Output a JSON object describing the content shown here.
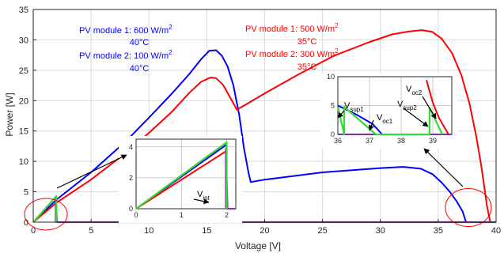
{
  "chart_data": {
    "type": "line",
    "xlabel": "Voltage [V]",
    "ylabel": "Power [W]",
    "xlim": [
      0,
      40
    ],
    "ylim": [
      0,
      35
    ],
    "x_ticks": [
      "0",
      "5",
      "10",
      "15",
      "20",
      "25",
      "30",
      "35",
      "40"
    ],
    "y_ticks": [
      "0",
      "5",
      "10",
      "15",
      "20",
      "25",
      "30",
      "35"
    ],
    "grid": true,
    "colors": {
      "blue": "#0000ff",
      "red": "#ff0000",
      "green": "#33dd33",
      "purple": "#8030a0",
      "ellipse": "#ff0000"
    },
    "series": [
      {
        "color": "blue",
        "points": [
          [
            0,
            0
          ],
          [
            2,
            3.7
          ],
          [
            5,
            8.2
          ],
          [
            8,
            13.3
          ],
          [
            10,
            17.2
          ],
          [
            12,
            21.2
          ],
          [
            13.5,
            24.4
          ],
          [
            14.5,
            26.8
          ],
          [
            15.2,
            28.2
          ],
          [
            15.8,
            28.3
          ],
          [
            16.3,
            27.4
          ],
          [
            16.8,
            25.6
          ],
          [
            17.3,
            22.5
          ],
          [
            17.8,
            17.7
          ],
          [
            18.2,
            12.3
          ],
          [
            18.6,
            8.2
          ],
          [
            18.8,
            6.6
          ],
          [
            20,
            7.0
          ],
          [
            25,
            8.2
          ],
          [
            30,
            8.9
          ],
          [
            32,
            9.1
          ],
          [
            33.5,
            8.8
          ],
          [
            34.5,
            7.9
          ],
          [
            35.3,
            6.5
          ],
          [
            36,
            5.0
          ],
          [
            36.6,
            3.4
          ],
          [
            37.1,
            1.8
          ],
          [
            37.4,
            0
          ]
        ]
      },
      {
        "color": "red",
        "points": [
          [
            0,
            0
          ],
          [
            2,
            3.2
          ],
          [
            5,
            7.0
          ],
          [
            8,
            11.4
          ],
          [
            10,
            14.7
          ],
          [
            12,
            18.2
          ],
          [
            13.5,
            21.3
          ],
          [
            14.5,
            23.1
          ],
          [
            15.3,
            23.8
          ],
          [
            15.8,
            23.7
          ],
          [
            16.4,
            22.6
          ],
          [
            17,
            20.6
          ],
          [
            17.6,
            18.5
          ],
          [
            18.5,
            19.5
          ],
          [
            20,
            21.2
          ],
          [
            23,
            24.4
          ],
          [
            26,
            27.4
          ],
          [
            29,
            29.6
          ],
          [
            31,
            30.9
          ],
          [
            32.5,
            31.4
          ],
          [
            33.6,
            31.6
          ],
          [
            34.5,
            31.3
          ],
          [
            35.3,
            30.2
          ],
          [
            36.2,
            27.8
          ],
          [
            37,
            24.2
          ],
          [
            37.7,
            19.5
          ],
          [
            38.3,
            14.0
          ],
          [
            38.7,
            9.5
          ],
          [
            39,
            5.5
          ],
          [
            39.2,
            2.8
          ],
          [
            39.5,
            0
          ]
        ]
      }
    ],
    "main_overlay": {
      "green": [
        [
          0,
          0
        ],
        [
          2,
          4.3
        ],
        [
          2,
          0
        ]
      ],
      "purple": [
        [
          1.95,
          0
        ],
        [
          1.95,
          3.8
        ],
        [
          2.05,
          0
        ],
        [
          40,
          0
        ]
      ]
    },
    "annotations": [
      {
        "lines": [
          "PV module 1: 600 W/m²",
          "40°C",
          "PV module 2: 100 W/m²",
          "40°C"
        ],
        "color": "blue"
      },
      {
        "lines": [
          "PV module 1: 500 W/m²",
          "35°C",
          "PV module 2: 300 W/m²",
          "35°C"
        ],
        "color": "red"
      }
    ],
    "insets": [
      {
        "xlim": [
          0,
          2.2
        ],
        "ylim": [
          0,
          4.5
        ],
        "x_ticks": [
          "0",
          "1",
          "2"
        ],
        "y_ticks": [
          "0",
          "2",
          "4"
        ],
        "label": "V",
        "label_sub": "int",
        "blue": [
          [
            0,
            0
          ],
          [
            2,
            4.15
          ]
        ],
        "red": [
          [
            0,
            0
          ],
          [
            2,
            3.75
          ]
        ],
        "green": [
          [
            0,
            0
          ],
          [
            2,
            4.3
          ],
          [
            2,
            0
          ]
        ],
        "purple": [
          [
            1.98,
            0
          ],
          [
            1.98,
            3.9
          ],
          [
            2.02,
            0
          ],
          [
            2.2,
            0
          ]
        ]
      },
      {
        "xlim": [
          36,
          39.6
        ],
        "ylim": [
          0,
          10
        ],
        "x_ticks": [
          "36",
          "37",
          "38",
          "39"
        ],
        "y_ticks": [
          "0",
          "5",
          "10"
        ],
        "labels": [
          {
            "main": "V",
            "sub": "sup1"
          },
          {
            "main": "V",
            "sub": "oc1"
          },
          {
            "main": "V",
            "sub": "sup2"
          },
          {
            "main": "V",
            "sub": "oc2"
          }
        ],
        "blue": [
          [
            36,
            5
          ],
          [
            36.6,
            3.4
          ],
          [
            37.1,
            1.8
          ],
          [
            37.4,
            0
          ],
          [
            39.6,
            0
          ]
        ],
        "red": [
          [
            38.8,
            9.4
          ],
          [
            39,
            5.5
          ],
          [
            39.2,
            2.8
          ],
          [
            39.5,
            0
          ]
        ],
        "green": [
          [
            36,
            4.8
          ],
          [
            36.2,
            0
          ],
          [
            36.2,
            4.8
          ],
          [
            37.2,
            0
          ],
          [
            38.9,
            0
          ],
          [
            38.9,
            4.6
          ],
          [
            39.3,
            0
          ]
        ],
        "purple": [
          [
            36,
            0
          ],
          [
            39.6,
            0
          ]
        ]
      }
    ]
  }
}
